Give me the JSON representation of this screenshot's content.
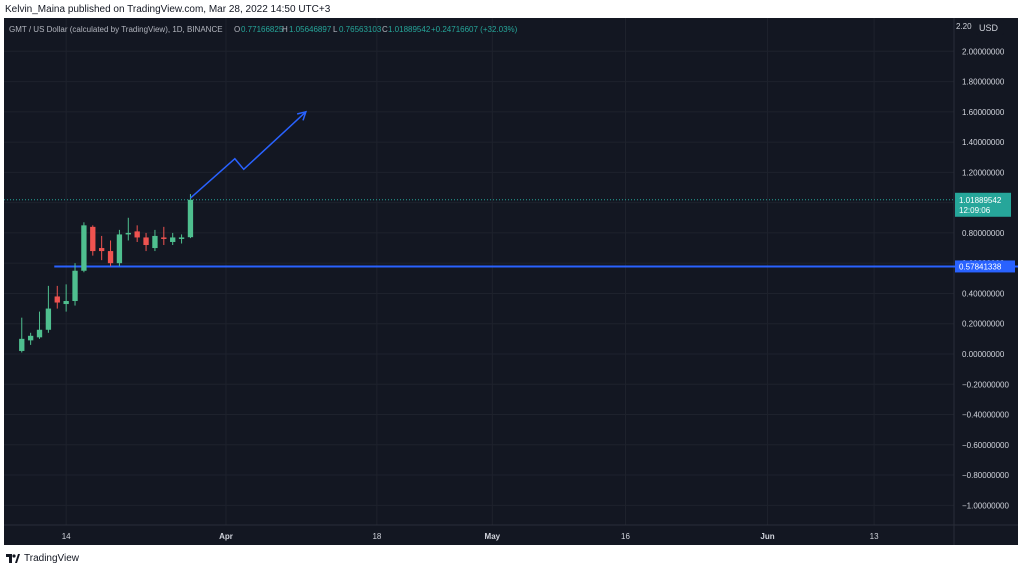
{
  "header": {
    "publish_line": "Kelvin_Maina published on TradingView.com, Mar 28, 2022 14:50 UTC+3"
  },
  "legend": {
    "symbol": "GMT / US Dollar (calculated by TradingView), 1D, BINANCE",
    "o_label": "O",
    "o_value": "0.77166825",
    "h_label": "H",
    "h_value": "1.05646897",
    "l_label": "L",
    "l_value": "0.76563103",
    "c_label": "C",
    "c_value": "1.01889542",
    "change": "+0.24716607 (+32.03%)"
  },
  "price_axis": {
    "currency": "USD",
    "last_price": "1.01889542",
    "countdown": "12:09:06",
    "level_price": "0.57841338",
    "top_partial_label": "2.20"
  },
  "footer": {
    "brand": "TradingView"
  },
  "colors": {
    "background": "#131722",
    "up": "#26a69a",
    "up_candle": "#4fbf8f",
    "down": "#ef5350",
    "drawing": "#2962ff",
    "grid": "#1e222d",
    "text": "#d1d4dc",
    "legend_up": "#26a69a"
  },
  "chart_data": {
    "type": "candlestick",
    "symbol": "GMT / US Dollar",
    "interval": "1D",
    "exchange": "BINANCE",
    "y_ticks": [
      2.0,
      1.8,
      1.6,
      1.4,
      1.2,
      1.0,
      0.8,
      0.6,
      0.4,
      0.2,
      0.0,
      -0.2,
      -0.4,
      -0.6,
      -0.8,
      -1.0
    ],
    "y_tick_labels": [
      "2.00000000",
      "1.80000000",
      "1.60000000",
      "1.40000000",
      "1.20000000",
      "1.00000000",
      "0.80000000",
      "0.60000000",
      "0.40000000",
      "0.20000000",
      "0.00000000",
      "−0.20000000",
      "−0.40000000",
      "−0.60000000",
      "−0.80000000",
      "−1.00000000"
    ],
    "ylim": [
      -1.13,
      2.22
    ],
    "x_ticks": [
      {
        "label": "14",
        "date": "2022-03-14"
      },
      {
        "label": "Apr",
        "date": "2022-04-01"
      },
      {
        "label": "18",
        "date": "2022-04-18"
      },
      {
        "label": "May",
        "date": "2022-05-01"
      },
      {
        "label": "16",
        "date": "2022-05-16"
      },
      {
        "label": "Jun",
        "date": "2022-06-01"
      },
      {
        "label": "13",
        "date": "2022-06-13"
      }
    ],
    "x_bold_labels": [
      "Apr",
      "May",
      "Jun"
    ],
    "xlim": [
      "2022-03-07",
      "2022-06-22"
    ],
    "candles": [
      {
        "date": "2022-03-09",
        "o": 0.02,
        "h": 0.24,
        "l": 0.01,
        "c": 0.1
      },
      {
        "date": "2022-03-10",
        "o": 0.09,
        "h": 0.14,
        "l": 0.06,
        "c": 0.12
      },
      {
        "date": "2022-03-11",
        "o": 0.11,
        "h": 0.28,
        "l": 0.1,
        "c": 0.16
      },
      {
        "date": "2022-03-12",
        "o": 0.16,
        "h": 0.45,
        "l": 0.14,
        "c": 0.3
      },
      {
        "date": "2022-03-13",
        "o": 0.38,
        "h": 0.45,
        "l": 0.3,
        "c": 0.34
      },
      {
        "date": "2022-03-14",
        "o": 0.33,
        "h": 0.46,
        "l": 0.28,
        "c": 0.35
      },
      {
        "date": "2022-03-15",
        "o": 0.35,
        "h": 0.6,
        "l": 0.32,
        "c": 0.55
      },
      {
        "date": "2022-03-16",
        "o": 0.55,
        "h": 0.87,
        "l": 0.54,
        "c": 0.85
      },
      {
        "date": "2022-03-17",
        "o": 0.84,
        "h": 0.85,
        "l": 0.65,
        "c": 0.68
      },
      {
        "date": "2022-03-18",
        "o": 0.7,
        "h": 0.78,
        "l": 0.62,
        "c": 0.68
      },
      {
        "date": "2022-03-19",
        "o": 0.68,
        "h": 0.75,
        "l": 0.58,
        "c": 0.6
      },
      {
        "date": "2022-03-20",
        "o": 0.6,
        "h": 0.82,
        "l": 0.58,
        "c": 0.79
      },
      {
        "date": "2022-03-21",
        "o": 0.79,
        "h": 0.9,
        "l": 0.75,
        "c": 0.8
      },
      {
        "date": "2022-03-22",
        "o": 0.81,
        "h": 0.85,
        "l": 0.74,
        "c": 0.77
      },
      {
        "date": "2022-03-23",
        "o": 0.77,
        "h": 0.8,
        "l": 0.68,
        "c": 0.72
      },
      {
        "date": "2022-03-24",
        "o": 0.7,
        "h": 0.82,
        "l": 0.68,
        "c": 0.78
      },
      {
        "date": "2022-03-25",
        "o": 0.77,
        "h": 0.84,
        "l": 0.72,
        "c": 0.76
      },
      {
        "date": "2022-03-26",
        "o": 0.74,
        "h": 0.8,
        "l": 0.72,
        "c": 0.77
      },
      {
        "date": "2022-03-27",
        "o": 0.76,
        "h": 0.79,
        "l": 0.73,
        "c": 0.77
      },
      {
        "date": "2022-03-28",
        "o": 0.77166825,
        "h": 1.05646897,
        "l": 0.76563103,
        "c": 1.01889542
      }
    ],
    "last_price": 1.01889542,
    "horizontal_level": {
      "price": 0.57841338,
      "from_date": "2022-03-13"
    },
    "projection_arrow": [
      {
        "date": "2022-03-28",
        "price": 1.03
      },
      {
        "date": "2022-04-02",
        "price": 1.29
      },
      {
        "date": "2022-04-03",
        "price": 1.22
      },
      {
        "date": "2022-04-10",
        "price": 1.6
      }
    ]
  }
}
